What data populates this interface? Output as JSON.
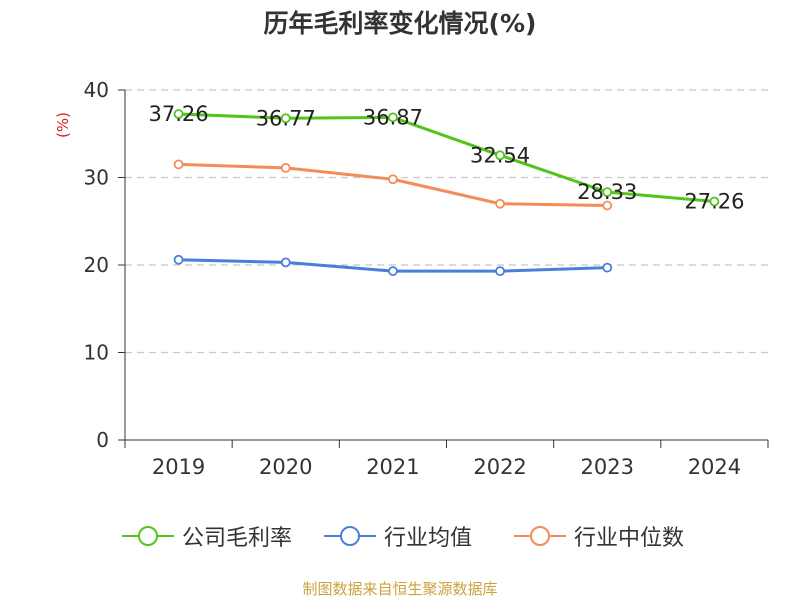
{
  "chart_data": {
    "type": "line",
    "title": "历年毛利率变化情况(%)",
    "ylabel": "(%)",
    "xlabel": "",
    "ylim": [
      0,
      40
    ],
    "yticks": [
      0,
      10,
      20,
      30,
      40
    ],
    "categories": [
      "2019",
      "2020",
      "2021",
      "2022",
      "2023",
      "2024"
    ],
    "grid": true,
    "legend_position": "bottom",
    "series": [
      {
        "name": "公司毛利率",
        "color": "#52c41a",
        "values": [
          37.26,
          36.77,
          36.87,
          32.54,
          28.33,
          27.26
        ],
        "show_labels": true
      },
      {
        "name": "行业均值",
        "color": "#4a7fd9",
        "values": [
          20.6,
          20.3,
          19.3,
          19.3,
          19.7,
          null
        ],
        "show_labels": false
      },
      {
        "name": "行业中位数",
        "color": "#f28d5a",
        "values": [
          31.5,
          31.1,
          29.8,
          27.0,
          26.8,
          null
        ],
        "show_labels": false
      }
    ]
  },
  "footer": {
    "source": "制图数据来自恒生聚源数据库"
  }
}
